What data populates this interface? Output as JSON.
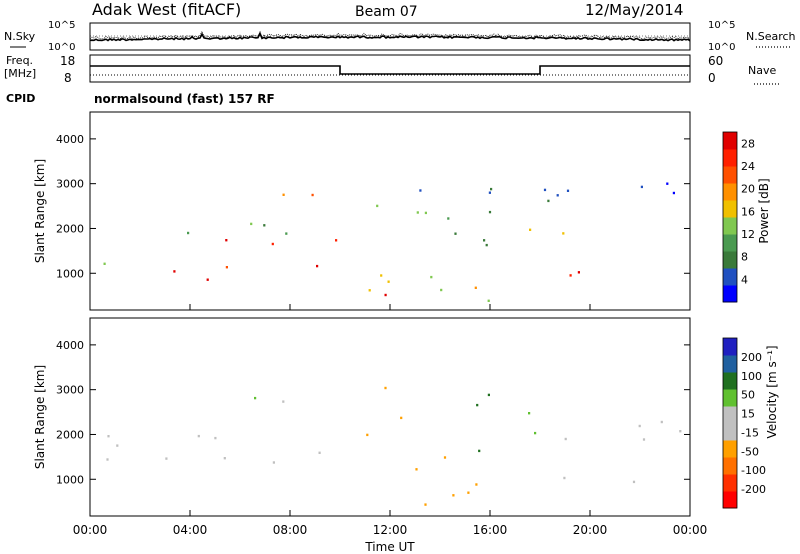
{
  "header": {
    "title": "Adak West (fitACF)",
    "beam": "Beam 07",
    "date": "12/May/2014"
  },
  "panels": {
    "nsky_label": "N.Sky",
    "nsearch_label": "N.Search",
    "noise_ticks": [
      "10^5",
      "10^0"
    ],
    "freq_label": "Freq.",
    "freq_unit": "[MHz]",
    "freq_ticks": [
      "18",
      "8"
    ],
    "nave_label": "Nave",
    "nave_ticks": [
      "60",
      "0"
    ],
    "cpid_label": "CPID",
    "cpid_text": "normalsound (fast) 157 RF"
  },
  "colors": {
    "power_scale": [
      "#0000ff",
      "#2050c0",
      "#3a7a3a",
      "#4a9a50",
      "#80c850",
      "#f0c000",
      "#ff9000",
      "#ff5000",
      "#ff2000",
      "#e00000"
    ],
    "velocity_scale": [
      "#2020c0",
      "#2060a0",
      "#207020",
      "#60c030",
      "#c0c0c0",
      "#c0c0c0",
      "#ffa000",
      "#ff7000",
      "#ff3000",
      "#ff0000"
    ]
  },
  "chart_data": [
    {
      "type": "heatmap",
      "title": "",
      "xlabel": "",
      "ylabel": "Slant Range [km]",
      "x_ticks": [
        "00:00",
        "04:00",
        "08:00",
        "12:00",
        "16:00",
        "20:00",
        "00:00"
      ],
      "y_ticks": [
        1000,
        2000,
        3000,
        4000
      ],
      "ylim": [
        180,
        4600
      ],
      "colorbar": {
        "label": "Power [dB]",
        "ticks": [
          4,
          8,
          12,
          16,
          20,
          24,
          28
        ],
        "range": [
          0,
          30
        ]
      },
      "features": [
        {
          "x": [
            0.0,
            10.0
          ],
          "y": [
            1800,
            2150
          ],
          "value": 12
        },
        {
          "x": [
            4.0,
            10.0
          ],
          "y": [
            1100,
            1850
          ],
          "value": 26
        },
        {
          "x": [
            0.0,
            4.0
          ],
          "y": [
            1000,
            1300
          ],
          "value": 14
        },
        {
          "x": [
            2.5,
            5.5
          ],
          "y": [
            700,
            1200
          ],
          "value": 27
        },
        {
          "x": [
            6.5,
            9.0
          ],
          "y": [
            2600,
            3400
          ],
          "value": 22
        },
        {
          "x": [
            10.0,
            13.5
          ],
          "y": [
            1800,
            2600
          ],
          "value": 12
        },
        {
          "x": [
            10.0,
            12.0
          ],
          "y": [
            200,
            700
          ],
          "value": 26
        },
        {
          "x": [
            11.0,
            16.5
          ],
          "y": [
            400,
            1500
          ],
          "value": 16
        },
        {
          "x": [
            13.0,
            18.0
          ],
          "y": [
            1500,
            3000
          ],
          "value": 8
        },
        {
          "x": [
            17.5,
            22.5
          ],
          "y": [
            1900,
            2200
          ],
          "value": 14
        },
        {
          "x": [
            19.0,
            22.0
          ],
          "y": [
            600,
            1250
          ],
          "value": 24
        },
        {
          "x": [
            18.0,
            24.0
          ],
          "y": [
            2300,
            3300
          ],
          "value": 4
        }
      ]
    },
    {
      "type": "heatmap",
      "title": "",
      "xlabel": "Time UT",
      "ylabel": "Slant Range [km]",
      "x_ticks": [
        "00:00",
        "04:00",
        "08:00",
        "12:00",
        "16:00",
        "20:00",
        "00:00"
      ],
      "y_ticks": [
        1000,
        2000,
        3000,
        4000
      ],
      "ylim": [
        180,
        4600
      ],
      "colorbar": {
        "label": "Velocity [m s⁻¹]",
        "ticks": [
          200,
          100,
          50,
          15,
          -15,
          -50,
          -100,
          -200
        ],
        "range": [
          -250,
          250
        ]
      },
      "features": [
        {
          "x": [
            0.0,
            10.0
          ],
          "y": [
            1400,
            2200
          ],
          "value": 0
        },
        {
          "x": [
            6.5,
            9.0
          ],
          "y": [
            2600,
            3400
          ],
          "value": 0
        },
        {
          "x": [
            10.5,
            12.5
          ],
          "y": [
            1800,
            3300
          ],
          "value": -70
        },
        {
          "x": [
            11.5,
            15.5
          ],
          "y": [
            400,
            1700
          ],
          "value": -60
        },
        {
          "x": [
            15.0,
            18.0
          ],
          "y": [
            1600,
            3000
          ],
          "value": 60
        },
        {
          "x": [
            18.0,
            24.0
          ],
          "y": [
            1900,
            2600
          ],
          "value": 0
        },
        {
          "x": [
            18.5,
            22.0
          ],
          "y": [
            600,
            1200
          ],
          "value": 0
        }
      ]
    }
  ]
}
